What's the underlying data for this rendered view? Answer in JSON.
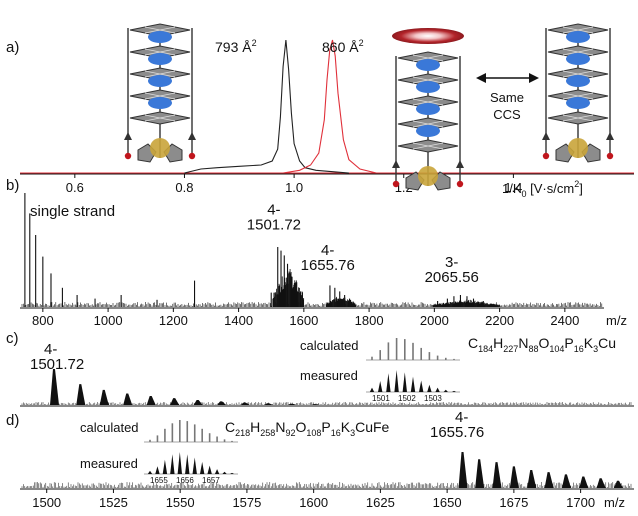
{
  "chart_data": [
    {
      "panel": "a)",
      "type": "line",
      "xlabel": "1/K",
      "xlabel_sub": "0",
      "xlabel_unit": " [V·s/cm",
      "xlabel_unit_sup": "2",
      "xlabel_unit_end": "]",
      "xlim": [
        0.5,
        1.62
      ],
      "ticks": [
        0.6,
        0.8,
        1.0,
        1.2,
        1.4
      ],
      "series": [
        {
          "color": "#222222",
          "peak_x": 0.985,
          "peak_width": 0.012,
          "ccs": "793 Å",
          "ccs_sup": "2",
          "x": [
            0.8,
            0.83,
            0.86,
            0.9,
            0.94,
            0.96,
            0.97,
            0.975,
            0.98,
            0.985,
            0.99,
            0.995,
            1.0,
            1.01,
            1.02,
            1.04,
            1.07,
            1.1
          ],
          "y": [
            0.0,
            0.03,
            0.04,
            0.05,
            0.06,
            0.09,
            0.18,
            0.42,
            0.8,
            1.0,
            0.78,
            0.45,
            0.22,
            0.09,
            0.04,
            0.02,
            0.01,
            0.0
          ]
        },
        {
          "color": "#e0303a",
          "peak_x": 1.07,
          "peak_width": 0.013,
          "ccs": "860 Å",
          "ccs_sup": "2",
          "x": [
            0.98,
            1.01,
            1.03,
            1.045,
            1.055,
            1.06,
            1.065,
            1.07,
            1.075,
            1.08,
            1.09,
            1.1,
            1.12,
            1.15
          ],
          "y": [
            0.0,
            0.02,
            0.06,
            0.15,
            0.4,
            0.7,
            0.92,
            1.0,
            0.88,
            0.6,
            0.25,
            0.1,
            0.03,
            0.0
          ]
        }
      ],
      "annotation": {
        "line1": "Same",
        "line2": "CCS"
      }
    },
    {
      "panel": "b)",
      "type": "line",
      "xlabel": "m/z",
      "xlim": [
        730,
        2520
      ],
      "ticks": [
        800,
        1000,
        1200,
        1400,
        1600,
        1800,
        2000,
        2200,
        2400
      ],
      "series_label": "single strand",
      "peaks": [
        {
          "mz": 745,
          "i": 0.95
        },
        {
          "mz": 760,
          "i": 0.78
        },
        {
          "mz": 778,
          "i": 0.6
        },
        {
          "mz": 800,
          "i": 0.42
        },
        {
          "mz": 825,
          "i": 0.28
        },
        {
          "mz": 860,
          "i": 0.16
        },
        {
          "mz": 905,
          "i": 0.1
        },
        {
          "mz": 960,
          "i": 0.07
        },
        {
          "mz": 1040,
          "i": 0.1
        },
        {
          "mz": 1150,
          "i": 0.06
        },
        {
          "mz": 1265,
          "i": 0.22
        },
        {
          "mz": 1500,
          "i": 0.12
        },
        {
          "mz": 1520,
          "i": 0.5
        },
        {
          "mz": 1530,
          "i": 0.47
        },
        {
          "mz": 1540,
          "i": 0.43
        },
        {
          "mz": 1550,
          "i": 0.36
        },
        {
          "mz": 1560,
          "i": 0.28
        },
        {
          "mz": 1575,
          "i": 0.2
        },
        {
          "mz": 1590,
          "i": 0.13
        },
        {
          "mz": 1680,
          "i": 0.18
        },
        {
          "mz": 1695,
          "i": 0.16
        },
        {
          "mz": 1710,
          "i": 0.13
        },
        {
          "mz": 1725,
          "i": 0.1
        },
        {
          "mz": 1740,
          "i": 0.07
        },
        {
          "mz": 2010,
          "i": 0.05
        },
        {
          "mz": 2040,
          "i": 0.07
        },
        {
          "mz": 2060,
          "i": 0.09
        },
        {
          "mz": 2080,
          "i": 0.1
        },
        {
          "mz": 2100,
          "i": 0.09
        },
        {
          "mz": 2120,
          "i": 0.07
        },
        {
          "mz": 2150,
          "i": 0.05
        }
      ],
      "envelopes": [
        {
          "from": 1505,
          "to": 1600,
          "i": 0.32
        },
        {
          "from": 1670,
          "to": 1760,
          "i": 0.1
        },
        {
          "from": 1995,
          "to": 2200,
          "i": 0.06
        }
      ],
      "labels": [
        {
          "charge": "4-",
          "mz": "1501.72",
          "at": 1545,
          "h": 0.58
        },
        {
          "charge": "4-",
          "mz": "1655.76",
          "at": 1710,
          "h": 0.24
        },
        {
          "charge": "3-",
          "mz": "2065.56",
          "at": 2090,
          "h": 0.14
        }
      ]
    },
    {
      "panel": "c)",
      "type": "line",
      "xlim": [
        1497,
        1510
      ],
      "label": {
        "charge": "4-",
        "mz": "1501.72"
      },
      "peaks_x": [
        1501.72,
        1502.0,
        1502.25,
        1502.5,
        1502.75,
        1503.0,
        1503.25,
        1503.5,
        1503.75,
        1504.0,
        1504.25,
        1504.5
      ],
      "peaks_y": [
        1.0,
        0.58,
        0.42,
        0.32,
        0.25,
        0.19,
        0.14,
        0.1,
        0.07,
        0.05,
        0.035,
        0.025
      ],
      "inset": {
        "formula_parts": [
          "C",
          "184",
          "H",
          "227",
          "N",
          "88",
          "O",
          "104",
          "P",
          "16",
          "K",
          "3",
          "Cu"
        ],
        "calculated_label": "calculated",
        "measured_label": "measured",
        "ticks": [
          "1501",
          "1502",
          "1503"
        ],
        "calc": [
          0.15,
          0.45,
          0.8,
          1.0,
          0.95,
          0.78,
          0.55,
          0.36,
          0.2,
          0.1,
          0.05
        ],
        "meas": [
          0.2,
          0.5,
          0.85,
          1.0,
          0.9,
          0.7,
          0.52,
          0.33,
          0.2,
          0.1,
          0.05
        ]
      }
    },
    {
      "panel": "d)",
      "type": "line",
      "xlabel": "m/z",
      "xlim": [
        1490,
        1720
      ],
      "ticks": [
        1500,
        1525,
        1550,
        1575,
        1600,
        1625,
        1650,
        1675,
        1700
      ],
      "label": {
        "charge": "4-",
        "mz": "1655.76"
      },
      "peaks_x": [
        1655.76,
        1662.0,
        1668.5,
        1675.0,
        1681.5,
        1688.0,
        1694.5,
        1701.0,
        1707.5,
        1714.0
      ],
      "peaks_y": [
        1.0,
        0.8,
        0.72,
        0.6,
        0.5,
        0.44,
        0.38,
        0.32,
        0.27,
        0.2
      ],
      "inset": {
        "formula_parts": [
          "C",
          "218",
          "H",
          "258",
          "N",
          "92",
          "O",
          "108",
          "P",
          "16",
          "K",
          "3",
          "CuFe"
        ],
        "calculated_label": "calculated",
        "measured_label": "measured",
        "ticks": [
          "1655",
          "1656",
          "1657"
        ],
        "calc": [
          0.1,
          0.3,
          0.6,
          0.85,
          1.0,
          0.95,
          0.8,
          0.6,
          0.4,
          0.25,
          0.12,
          0.05
        ],
        "meas": [
          0.15,
          0.35,
          0.65,
          0.9,
          1.0,
          0.9,
          0.75,
          0.55,
          0.38,
          0.22,
          0.1,
          0.05
        ]
      }
    }
  ],
  "colors": {
    "ink": "#111111",
    "red": "#e0303a",
    "cage_fill": "#8c8c8c",
    "cage_edge": "#333333",
    "guest": "#3a78d8",
    "gold": "#c9a43a",
    "rim": "#c0161d",
    "halo": "#b3242a"
  },
  "icons": [
    "cage-left-icon",
    "cage-mid-icon",
    "cage-right-icon",
    "double-arrow-icon",
    "halo-icon"
  ]
}
